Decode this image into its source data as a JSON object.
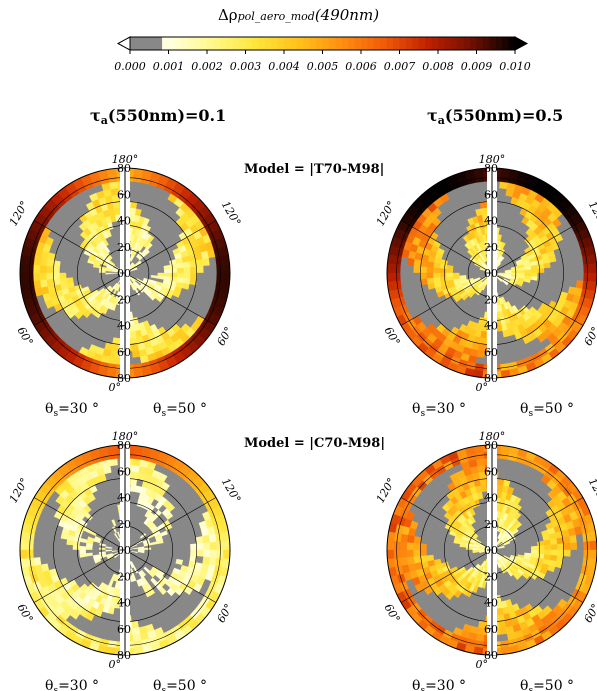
{
  "colorbar": {
    "title_main": "Δρ",
    "title_sub": "pol_aero_mod",
    "title_wavelength": "(490nm)",
    "tick_labels": [
      "0.000",
      "0.001",
      "0.002",
      "0.003",
      "0.004",
      "0.005",
      "0.006",
      "0.007",
      "0.008",
      "0.009",
      "0.010"
    ],
    "min": 0.0,
    "max": 0.01,
    "below_min_color": "#888888",
    "colormap": [
      "#888888",
      "#ffffe0",
      "#fff98a",
      "#ffe63a",
      "#ffc21a",
      "#ff8f10",
      "#f05a08",
      "#c02000",
      "#701000",
      "#000000"
    ]
  },
  "columns": [
    {
      "label_prefix": "τ",
      "label_sub": "a",
      "label_rest": "(550nm)=0.1"
    },
    {
      "label_prefix": "τ",
      "label_sub": "a",
      "label_rest": "(550nm)=0.5"
    }
  ],
  "models": [
    {
      "label": "Model = |T70-M98|"
    },
    {
      "label": "Model = |C70-M98|"
    }
  ],
  "chart_data": {
    "type": "heatmap",
    "description_axes": {
      "radial_ticks": [
        "80",
        "60",
        "40",
        "20",
        "00",
        "20",
        "40",
        "60",
        "80"
      ],
      "azimuth_labels": [
        "180°",
        "120°",
        "60°",
        "0°"
      ]
    },
    "theta_labels": [
      {
        "sym": "θ",
        "sub": "s",
        "rest": "=30 °"
      },
      {
        "sym": "θ",
        "sub": "s",
        "rest": "=50 °"
      }
    ],
    "panels": [
      {
        "model": "|T70-M98|",
        "tau": 0.1,
        "left_level": 0.0032,
        "right_level": 0.003,
        "max_level": 0.0095
      },
      {
        "model": "|T70-M98|",
        "tau": 0.5,
        "left_level": 0.005,
        "right_level": 0.0042,
        "max_level": 0.01
      },
      {
        "model": "|C70-M98|",
        "tau": 0.1,
        "left_level": 0.0022,
        "right_level": 0.0018,
        "max_level": 0.007
      },
      {
        "model": "|C70-M98|",
        "tau": 0.5,
        "left_level": 0.0048,
        "right_level": 0.0042,
        "max_level": 0.01
      }
    ]
  }
}
